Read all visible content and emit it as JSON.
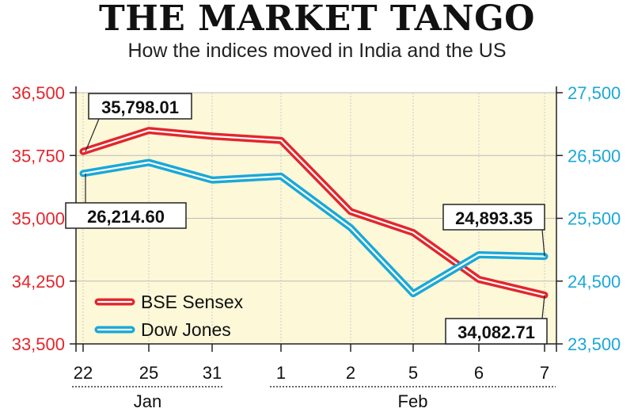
{
  "title": "THE MARKET TANGO",
  "subtitle": "How the indices moved in India and the US",
  "chart_data": {
    "type": "line",
    "title": "THE MARKET TANGO",
    "subtitle": "How the indices moved in India and the US",
    "categories": [
      "22",
      "25",
      "31",
      "1",
      "2",
      "5",
      "6",
      "7"
    ],
    "month_labels": [
      {
        "label": "Jan",
        "from": 0,
        "to": 2
      },
      {
        "label": "Feb",
        "from": 3,
        "to": 7
      }
    ],
    "y_left": {
      "ticks": [
        33500,
        34250,
        35000,
        35750,
        36500
      ],
      "tick_labels": [
        "33,500",
        "34,250",
        "35,000",
        "35,750",
        "36,500"
      ],
      "ylim": [
        33500,
        36500
      ],
      "color": "#e3262d"
    },
    "y_right": {
      "ticks": [
        23500,
        24500,
        25500,
        26500,
        27500
      ],
      "tick_labels": [
        "23,500",
        "24,500",
        "25,500",
        "26,500",
        "27,500"
      ],
      "ylim": [
        23500,
        27500
      ],
      "color": "#1aa8d8"
    },
    "series": [
      {
        "name": "BSE Sensex",
        "axis": "left",
        "color": "#e3262d",
        "values": [
          35798.01,
          36050,
          35980,
          35930,
          35080,
          34830,
          34270,
          34082.71
        ]
      },
      {
        "name": "Dow Jones",
        "axis": "right",
        "color": "#1aa8d8",
        "values": [
          26214.6,
          26390,
          26110,
          26170,
          25350,
          24300,
          24920,
          24893.35
        ]
      }
    ],
    "annotations": [
      {
        "text": "35,798.01",
        "series": 0,
        "index": 0
      },
      {
        "text": "26,214.60",
        "series": 1,
        "index": 0
      },
      {
        "text": "24,893.35",
        "series": 1,
        "index": 7
      },
      {
        "text": "34,082.71",
        "series": 0,
        "index": 7
      }
    ],
    "legend_position": "bottom-left",
    "grid": true,
    "background": "#fcf8d8"
  }
}
